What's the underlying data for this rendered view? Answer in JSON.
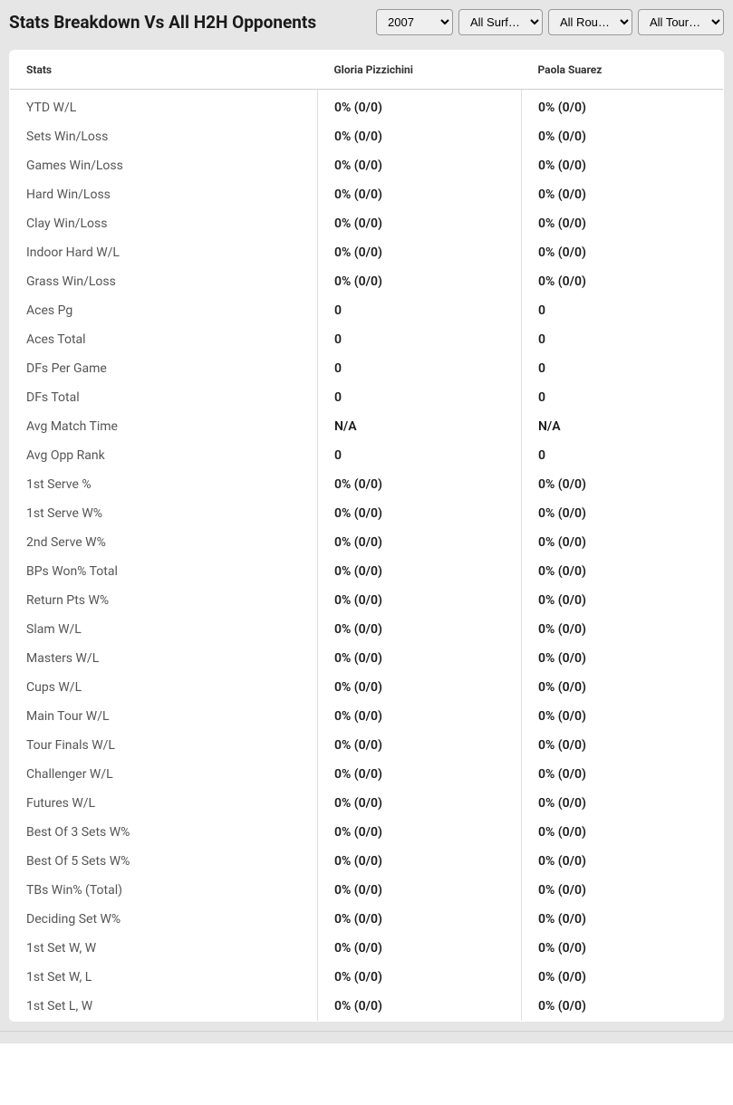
{
  "header": {
    "title": "Stats Breakdown Vs All H2H Opponents"
  },
  "filters": {
    "year": {
      "selected": "2007",
      "options": [
        "2007"
      ]
    },
    "surface": {
      "selected": "All Surf…",
      "options": [
        "All Surf…"
      ]
    },
    "round": {
      "selected": "All Rou…",
      "options": [
        "All Rou…"
      ]
    },
    "tournament": {
      "selected": "All Tour…",
      "options": [
        "All Tour…"
      ]
    }
  },
  "table": {
    "columns": [
      "Stats",
      "Gloria Pizzichini",
      "Paola Suarez"
    ],
    "rows": [
      {
        "stat": "YTD W/L",
        "p1": "0% (0/0)",
        "p2": "0% (0/0)"
      },
      {
        "stat": "Sets Win/Loss",
        "p1": "0% (0/0)",
        "p2": "0% (0/0)"
      },
      {
        "stat": "Games Win/Loss",
        "p1": "0% (0/0)",
        "p2": "0% (0/0)"
      },
      {
        "stat": "Hard Win/Loss",
        "p1": "0% (0/0)",
        "p2": "0% (0/0)"
      },
      {
        "stat": "Clay Win/Loss",
        "p1": "0% (0/0)",
        "p2": "0% (0/0)"
      },
      {
        "stat": "Indoor Hard W/L",
        "p1": "0% (0/0)",
        "p2": "0% (0/0)"
      },
      {
        "stat": "Grass Win/Loss",
        "p1": "0% (0/0)",
        "p2": "0% (0/0)"
      },
      {
        "stat": "Aces Pg",
        "p1": "0",
        "p2": "0"
      },
      {
        "stat": "Aces Total",
        "p1": "0",
        "p2": "0"
      },
      {
        "stat": "DFs Per Game",
        "p1": "0",
        "p2": "0"
      },
      {
        "stat": "DFs Total",
        "p1": "0",
        "p2": "0"
      },
      {
        "stat": "Avg Match Time",
        "p1": "N/A",
        "p2": "N/A"
      },
      {
        "stat": "Avg Opp Rank",
        "p1": "0",
        "p2": "0"
      },
      {
        "stat": "1st Serve %",
        "p1": "0% (0/0)",
        "p2": "0% (0/0)"
      },
      {
        "stat": "1st Serve W%",
        "p1": "0% (0/0)",
        "p2": "0% (0/0)"
      },
      {
        "stat": "2nd Serve W%",
        "p1": "0% (0/0)",
        "p2": "0% (0/0)"
      },
      {
        "stat": "BPs Won% Total",
        "p1": "0% (0/0)",
        "p2": "0% (0/0)"
      },
      {
        "stat": "Return Pts W%",
        "p1": "0% (0/0)",
        "p2": "0% (0/0)"
      },
      {
        "stat": "Slam W/L",
        "p1": "0% (0/0)",
        "p2": "0% (0/0)"
      },
      {
        "stat": "Masters W/L",
        "p1": "0% (0/0)",
        "p2": "0% (0/0)"
      },
      {
        "stat": "Cups W/L",
        "p1": "0% (0/0)",
        "p2": "0% (0/0)"
      },
      {
        "stat": "Main Tour W/L",
        "p1": "0% (0/0)",
        "p2": "0% (0/0)"
      },
      {
        "stat": "Tour Finals W/L",
        "p1": "0% (0/0)",
        "p2": "0% (0/0)"
      },
      {
        "stat": "Challenger W/L",
        "p1": "0% (0/0)",
        "p2": "0% (0/0)"
      },
      {
        "stat": "Futures W/L",
        "p1": "0% (0/0)",
        "p2": "0% (0/0)"
      },
      {
        "stat": "Best Of 3 Sets W%",
        "p1": "0% (0/0)",
        "p2": "0% (0/0)"
      },
      {
        "stat": "Best Of 5 Sets W%",
        "p1": "0% (0/0)",
        "p2": "0% (0/0)"
      },
      {
        "stat": "TBs Win% (Total)",
        "p1": "0% (0/0)",
        "p2": "0% (0/0)"
      },
      {
        "stat": "Deciding Set W%",
        "p1": "0% (0/0)",
        "p2": "0% (0/0)"
      },
      {
        "stat": "1st Set W, W",
        "p1": "0% (0/0)",
        "p2": "0% (0/0)"
      },
      {
        "stat": "1st Set W, L",
        "p1": "0% (0/0)",
        "p2": "0% (0/0)"
      },
      {
        "stat": "1st Set L, W",
        "p1": "0% (0/0)",
        "p2": "0% (0/0)"
      }
    ]
  },
  "styling": {
    "header_bg": "#e6e6e6",
    "table_bg": "#ffffff",
    "border_color": "#cccccc",
    "cell_border_color": "#e0e0e0",
    "title_color": "#1a1a1a",
    "stat_name_color": "#555555",
    "stat_value_color": "#1a1a1a",
    "title_fontsize": 19,
    "header_fontsize": 12,
    "cell_fontsize": 14
  }
}
